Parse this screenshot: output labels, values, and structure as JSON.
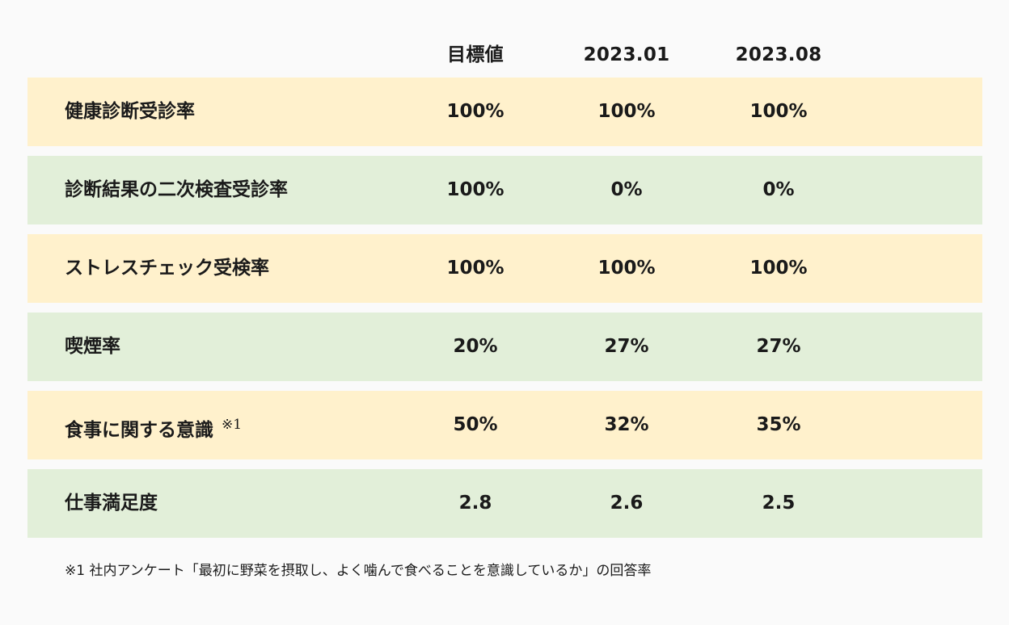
{
  "columns": {
    "target": "目標値",
    "period1": "2023.01",
    "period2": "2023.08"
  },
  "rows": [
    {
      "label": "健康診断受診率",
      "note": "",
      "target": "100%",
      "period1": "100%",
      "period2": "100%",
      "color": "#fff1cc"
    },
    {
      "label": "診断結果の二次検査受診率",
      "note": "",
      "target": "100%",
      "period1": "0%",
      "period2": "0%",
      "color": "#e2efd9"
    },
    {
      "label": "ストレスチェック受検率",
      "note": "",
      "target": "100%",
      "period1": "100%",
      "period2": "100%",
      "color": "#fff1cc"
    },
    {
      "label": "喫煙率",
      "note": "",
      "target": "20%",
      "period1": "27%",
      "period2": "27%",
      "color": "#e2efd9"
    },
    {
      "label": "食事に関する意識",
      "note": "※1",
      "target": "50%",
      "period1": "32%",
      "period2": "35%",
      "color": "#fff1cc"
    },
    {
      "label": "仕事満足度",
      "note": "",
      "target": "2.8",
      "period1": "2.6",
      "period2": "2.5",
      "color": "#e2efd9"
    }
  ],
  "footnote": "※1 社内アンケート「最初に野菜を摂取し、よく噛んで食べることを意識しているか」の回答率"
}
